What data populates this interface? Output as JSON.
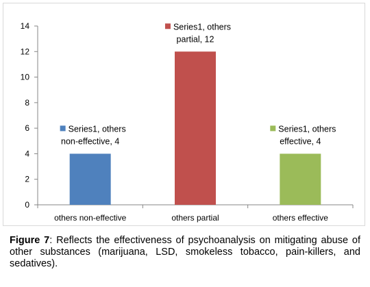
{
  "chart_data": {
    "type": "bar",
    "categories": [
      "others non-effective",
      "others partial",
      "others effective"
    ],
    "values": [
      4,
      12,
      4
    ],
    "colors": [
      "#4f81bd",
      "#c0504d",
      "#9bbb59"
    ],
    "data_labels": [
      [
        "Series1, others",
        "non-effective, 4"
      ],
      [
        "Series1, others",
        "partial, 12"
      ],
      [
        "Series1, others",
        "effective, 4"
      ]
    ],
    "ylim": [
      0,
      14
    ],
    "yticks": [
      0,
      2,
      4,
      6,
      8,
      10,
      12,
      14
    ],
    "title": "",
    "xlabel": "",
    "ylabel": "",
    "grid": false,
    "legend": "none"
  },
  "caption": {
    "label": "Figure 7",
    "text": ": Reflects the effectiveness of psychoanalysis on mitigating abuse of other substances (marijuana, LSD, smokeless tobacco, pain-killers, and sedatives)."
  }
}
